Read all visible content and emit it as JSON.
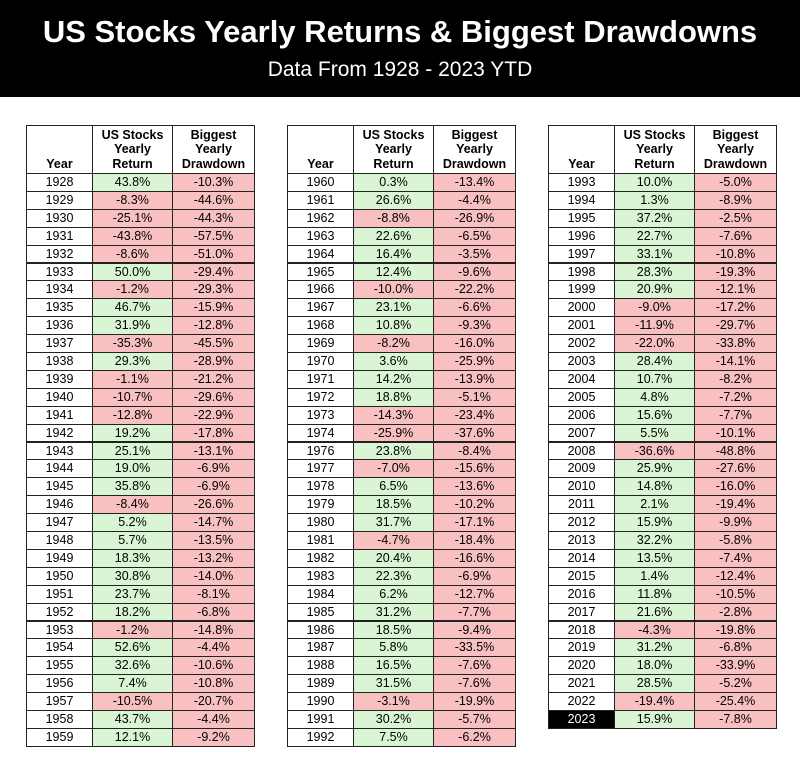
{
  "header": {
    "title": "US Stocks Yearly Returns & Biggest Drawdowns",
    "subtitle": "Data From 1928 - 2023 YTD"
  },
  "tables": [
    {
      "columns": [
        [
          "Year"
        ],
        [
          "US Stocks",
          "Yearly",
          "Return"
        ],
        [
          "Biggest",
          "Yearly",
          "Drawdown"
        ]
      ],
      "rows": [
        [
          "1928",
          "43.8%",
          "-10.3%"
        ],
        [
          "1929",
          "-8.3%",
          "-44.6%"
        ],
        [
          "1930",
          "-25.1%",
          "-44.3%"
        ],
        [
          "1931",
          "-43.8%",
          "-57.5%"
        ],
        [
          "1932",
          "-8.6%",
          "-51.0%"
        ],
        [
          "1933",
          "50.0%",
          "-29.4%"
        ],
        [
          "1934",
          "-1.2%",
          "-29.3%"
        ],
        [
          "1935",
          "46.7%",
          "-15.9%"
        ],
        [
          "1936",
          "31.9%",
          "-12.8%"
        ],
        [
          "1937",
          "-35.3%",
          "-45.5%"
        ],
        [
          "1938",
          "29.3%",
          "-28.9%"
        ],
        [
          "1939",
          "-1.1%",
          "-21.2%"
        ],
        [
          "1940",
          "-10.7%",
          "-29.6%"
        ],
        [
          "1941",
          "-12.8%",
          "-22.9%"
        ],
        [
          "1942",
          "19.2%",
          "-17.8%"
        ],
        [
          "1943",
          "25.1%",
          "-13.1%"
        ],
        [
          "1944",
          "19.0%",
          "-6.9%"
        ],
        [
          "1945",
          "35.8%",
          "-6.9%"
        ],
        [
          "1946",
          "-8.4%",
          "-26.6%"
        ],
        [
          "1947",
          "5.2%",
          "-14.7%"
        ],
        [
          "1948",
          "5.7%",
          "-13.5%"
        ],
        [
          "1949",
          "18.3%",
          "-13.2%"
        ],
        [
          "1950",
          "30.8%",
          "-14.0%"
        ],
        [
          "1951",
          "23.7%",
          "-8.1%"
        ],
        [
          "1952",
          "18.2%",
          "-6.8%"
        ],
        [
          "1953",
          "-1.2%",
          "-14.8%"
        ],
        [
          "1954",
          "52.6%",
          "-4.4%"
        ],
        [
          "1955",
          "32.6%",
          "-10.6%"
        ],
        [
          "1956",
          "7.4%",
          "-10.8%"
        ],
        [
          "1957",
          "-10.5%",
          "-20.7%"
        ],
        [
          "1958",
          "43.7%",
          "-4.4%"
        ],
        [
          "1959",
          "12.1%",
          "-9.2%"
        ]
      ]
    },
    {
      "columns": [
        [
          "Year"
        ],
        [
          "US Stocks",
          "Yearly",
          "Return"
        ],
        [
          "Biggest",
          "Yearly",
          "Drawdown"
        ]
      ],
      "rows": [
        [
          "1960",
          "0.3%",
          "-13.4%"
        ],
        [
          "1961",
          "26.6%",
          "-4.4%"
        ],
        [
          "1962",
          "-8.8%",
          "-26.9%"
        ],
        [
          "1963",
          "22.6%",
          "-6.5%"
        ],
        [
          "1964",
          "16.4%",
          "-3.5%"
        ],
        [
          "1965",
          "12.4%",
          "-9.6%"
        ],
        [
          "1966",
          "-10.0%",
          "-22.2%"
        ],
        [
          "1967",
          "23.1%",
          "-6.6%"
        ],
        [
          "1968",
          "10.8%",
          "-9.3%"
        ],
        [
          "1969",
          "-8.2%",
          "-16.0%"
        ],
        [
          "1970",
          "3.6%",
          "-25.9%"
        ],
        [
          "1971",
          "14.2%",
          "-13.9%"
        ],
        [
          "1972",
          "18.8%",
          "-5.1%"
        ],
        [
          "1973",
          "-14.3%",
          "-23.4%"
        ],
        [
          "1974",
          "-25.9%",
          "-37.6%"
        ],
        [
          "1976",
          "23.8%",
          "-8.4%"
        ],
        [
          "1977",
          "-7.0%",
          "-15.6%"
        ],
        [
          "1978",
          "6.5%",
          "-13.6%"
        ],
        [
          "1979",
          "18.5%",
          "-10.2%"
        ],
        [
          "1980",
          "31.7%",
          "-17.1%"
        ],
        [
          "1981",
          "-4.7%",
          "-18.4%"
        ],
        [
          "1982",
          "20.4%",
          "-16.6%"
        ],
        [
          "1983",
          "22.3%",
          "-6.9%"
        ],
        [
          "1984",
          "6.2%",
          "-12.7%"
        ],
        [
          "1985",
          "31.2%",
          "-7.7%"
        ],
        [
          "1986",
          "18.5%",
          "-9.4%"
        ],
        [
          "1987",
          "5.8%",
          "-33.5%"
        ],
        [
          "1988",
          "16.5%",
          "-7.6%"
        ],
        [
          "1989",
          "31.5%",
          "-7.6%"
        ],
        [
          "1990",
          "-3.1%",
          "-19.9%"
        ],
        [
          "1991",
          "30.2%",
          "-5.7%"
        ],
        [
          "1992",
          "7.5%",
          "-6.2%"
        ]
      ]
    },
    {
      "columns": [
        [
          "Year"
        ],
        [
          "US Stocks",
          "Yearly",
          "Return"
        ],
        [
          "Biggest",
          "Yearly",
          "Drawdown"
        ]
      ],
      "rows": [
        [
          "1993",
          "10.0%",
          "-5.0%"
        ],
        [
          "1994",
          "1.3%",
          "-8.9%"
        ],
        [
          "1995",
          "37.2%",
          "-2.5%"
        ],
        [
          "1996",
          "22.7%",
          "-7.6%"
        ],
        [
          "1997",
          "33.1%",
          "-10.8%"
        ],
        [
          "1998",
          "28.3%",
          "-19.3%"
        ],
        [
          "1999",
          "20.9%",
          "-12.1%"
        ],
        [
          "2000",
          "-9.0%",
          "-17.2%"
        ],
        [
          "2001",
          "-11.9%",
          "-29.7%"
        ],
        [
          "2002",
          "-22.0%",
          "-33.8%"
        ],
        [
          "2003",
          "28.4%",
          "-14.1%"
        ],
        [
          "2004",
          "10.7%",
          "-8.2%"
        ],
        [
          "2005",
          "4.8%",
          "-7.2%"
        ],
        [
          "2006",
          "15.6%",
          "-7.7%"
        ],
        [
          "2007",
          "5.5%",
          "-10.1%"
        ],
        [
          "2008",
          "-36.6%",
          "-48.8%"
        ],
        [
          "2009",
          "25.9%",
          "-27.6%"
        ],
        [
          "2010",
          "14.8%",
          "-16.0%"
        ],
        [
          "2011",
          "2.1%",
          "-19.4%"
        ],
        [
          "2012",
          "15.9%",
          "-9.9%"
        ],
        [
          "2013",
          "32.2%",
          "-5.8%"
        ],
        [
          "2014",
          "13.5%",
          "-7.4%"
        ],
        [
          "2015",
          "1.4%",
          "-12.4%"
        ],
        [
          "2016",
          "11.8%",
          "-10.5%"
        ],
        [
          "2017",
          "21.6%",
          "-2.8%"
        ],
        [
          "2018",
          "-4.3%",
          "-19.8%"
        ],
        [
          "2019",
          "31.2%",
          "-6.8%"
        ],
        [
          "2020",
          "18.0%",
          "-33.9%"
        ],
        [
          "2021",
          "28.5%",
          "-5.2%"
        ],
        [
          "2022",
          "-19.4%",
          "-25.4%"
        ],
        [
          "2023",
          "15.9%",
          "-7.8%"
        ]
      ]
    }
  ]
}
